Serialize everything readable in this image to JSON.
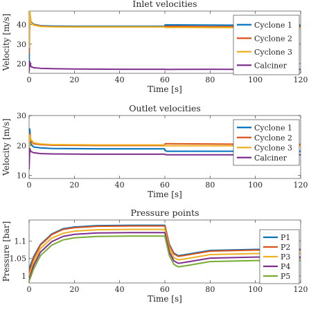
{
  "chart_data": [
    {
      "type": "line",
      "title": "Inlet velocities",
      "xlabel": "Time [s]",
      "ylabel": "Velocity [m/s]",
      "xlim": [
        0,
        120
      ],
      "ylim": [
        15,
        47
      ],
      "xticks": [
        0,
        20,
        40,
        60,
        80,
        100,
        120
      ],
      "yticks": [
        20,
        30,
        40
      ],
      "grid": false,
      "legend_position": "top-right",
      "series": [
        {
          "name": "Cyclone 1",
          "color": "#0072BD",
          "points": [
            [
              0,
              18
            ],
            [
              0.3,
              46
            ],
            [
              0.8,
              41.5
            ],
            [
              2,
              40.2
            ],
            [
              5,
              39.5
            ],
            [
              10,
              39.3
            ],
            [
              20,
              39.2
            ],
            [
              40,
              39.2
            ],
            [
              59.9,
              39.2
            ],
            [
              60.1,
              39.9
            ],
            [
              61,
              39.9
            ],
            [
              80,
              39.8
            ],
            [
              100,
              39.7
            ],
            [
              120,
              39.7
            ]
          ]
        },
        {
          "name": "Cyclone 2",
          "color": "#D95319",
          "points": [
            [
              0,
              25
            ],
            [
              0.3,
              46
            ],
            [
              0.8,
              41.3
            ],
            [
              2,
              40.0
            ],
            [
              5,
              39.3
            ],
            [
              10,
              39.0
            ],
            [
              20,
              38.9
            ],
            [
              40,
              38.9
            ],
            [
              59.9,
              38.9
            ],
            [
              60.1,
              39.2
            ],
            [
              61,
              39.2
            ],
            [
              80,
              39.0
            ],
            [
              100,
              39.0
            ],
            [
              120,
              39.0
            ]
          ]
        },
        {
          "name": "Cyclone 3",
          "color": "#EDB120",
          "points": [
            [
              0,
              28
            ],
            [
              0.3,
              47
            ],
            [
              0.8,
              41.0
            ],
            [
              2,
              39.8
            ],
            [
              5,
              39.1
            ],
            [
              10,
              38.9
            ],
            [
              20,
              38.8
            ],
            [
              40,
              38.8
            ],
            [
              59.9,
              38.8
            ],
            [
              60.1,
              38.6
            ],
            [
              61,
              38.6
            ],
            [
              80,
              38.5
            ],
            [
              100,
              38.5
            ],
            [
              120,
              38.5
            ]
          ]
        },
        {
          "name": "Calciner",
          "color": "#7E2F8E",
          "points": [
            [
              0,
              16
            ],
            [
              0.3,
              21
            ],
            [
              0.8,
              18.5
            ],
            [
              2,
              17.9
            ],
            [
              5,
              17.6
            ],
            [
              10,
              17.4
            ],
            [
              20,
              17.2
            ],
            [
              40,
              17.1
            ],
            [
              60,
              17.1
            ],
            [
              60.2,
              17.0
            ],
            [
              80,
              17.1
            ],
            [
              100,
              17.0
            ],
            [
              120,
              17.0
            ]
          ]
        }
      ]
    },
    {
      "type": "line",
      "title": "Outlet velocities",
      "xlabel": "Time [s]",
      "ylabel": "Velocity [m/s]",
      "xlim": [
        0,
        120
      ],
      "ylim": [
        9,
        30
      ],
      "xticks": [
        0,
        20,
        40,
        60,
        80,
        100,
        120
      ],
      "yticks": [
        10,
        20,
        30
      ],
      "grid": false,
      "legend_position": "top-right",
      "series": [
        {
          "name": "Cyclone 1",
          "color": "#0072BD",
          "points": [
            [
              0,
              13
            ],
            [
              0.3,
              25.5
            ],
            [
              0.8,
              20.5
            ],
            [
              2,
              19.5
            ],
            [
              5,
              19.2
            ],
            [
              10,
              19.0
            ],
            [
              30,
              18.9
            ],
            [
              59.9,
              18.9
            ],
            [
              60.1,
              18.3
            ],
            [
              61,
              18.1
            ],
            [
              80,
              18.1
            ],
            [
              100,
              18.1
            ],
            [
              120,
              18.1
            ]
          ]
        },
        {
          "name": "Cyclone 2",
          "color": "#D95319",
          "points": [
            [
              0,
              14
            ],
            [
              0.3,
              24
            ],
            [
              0.8,
              21.5
            ],
            [
              2,
              20.6
            ],
            [
              5,
              20.3
            ],
            [
              10,
              20.1
            ],
            [
              30,
              20.0
            ],
            [
              59.9,
              20.0
            ],
            [
              60.1,
              20.6
            ],
            [
              61,
              20.6
            ],
            [
              80,
              20.5
            ],
            [
              100,
              20.4
            ],
            [
              120,
              20.4
            ]
          ]
        },
        {
          "name": "Cyclone 3",
          "color": "#EDB120",
          "points": [
            [
              0,
              15
            ],
            [
              0.3,
              23.5
            ],
            [
              0.8,
              22
            ],
            [
              2,
              20.9
            ],
            [
              5,
              20.5
            ],
            [
              10,
              20.3
            ],
            [
              30,
              20.2
            ],
            [
              59.9,
              20.2
            ],
            [
              60.1,
              20.0
            ],
            [
              61,
              19.9
            ],
            [
              80,
              19.9
            ],
            [
              100,
              19.9
            ],
            [
              120,
              19.9
            ]
          ]
        },
        {
          "name": "Calciner",
          "color": "#7E2F8E",
          "points": [
            [
              0,
              12
            ],
            [
              0.3,
              19
            ],
            [
              0.8,
              18
            ],
            [
              2,
              17.6
            ],
            [
              5,
              17.3
            ],
            [
              10,
              17.2
            ],
            [
              30,
              17.1
            ],
            [
              59.9,
              17.1
            ],
            [
              60.1,
              17.0
            ],
            [
              61,
              16.9
            ],
            [
              80,
              16.9
            ],
            [
              100,
              16.9
            ],
            [
              120,
              16.9
            ]
          ]
        }
      ]
    },
    {
      "type": "line",
      "title": "Pressure points",
      "xlabel": "Time [s]",
      "ylabel": "Pressure [bar]",
      "xlim": [
        0,
        120
      ],
      "ylim": [
        0.98,
        1.16
      ],
      "xticks": [
        0,
        20,
        40,
        60,
        80,
        100,
        120
      ],
      "yticks": [
        1,
        1.05,
        1.1
      ],
      "ytick_labels": [
        "1",
        "1.05",
        "1.1"
      ],
      "grid": false,
      "legend_position": "top-right",
      "series": [
        {
          "name": "P1",
          "color": "#0072BD",
          "points": [
            [
              0,
              1.02
            ],
            [
              2,
              1.055
            ],
            [
              5,
              1.09
            ],
            [
              10,
              1.12
            ],
            [
              15,
              1.135
            ],
            [
              20,
              1.14
            ],
            [
              30,
              1.144
            ],
            [
              45,
              1.145
            ],
            [
              60,
              1.145
            ],
            [
              62,
              1.09
            ],
            [
              64,
              1.065
            ],
            [
              66,
              1.058
            ],
            [
              70,
              1.062
            ],
            [
              80,
              1.073
            ],
            [
              100,
              1.076
            ],
            [
              120,
              1.076
            ]
          ]
        },
        {
          "name": "P2",
          "color": "#D95319",
          "points": [
            [
              0,
              1.01
            ],
            [
              2,
              1.05
            ],
            [
              5,
              1.088
            ],
            [
              10,
              1.118
            ],
            [
              15,
              1.133
            ],
            [
              20,
              1.138
            ],
            [
              30,
              1.142
            ],
            [
              45,
              1.143
            ],
            [
              60,
              1.143
            ],
            [
              62,
              1.088
            ],
            [
              64,
              1.063
            ],
            [
              66,
              1.056
            ],
            [
              70,
              1.06
            ],
            [
              80,
              1.071
            ],
            [
              100,
              1.074
            ],
            [
              120,
              1.074
            ]
          ]
        },
        {
          "name": "P3",
          "color": "#EDB120",
          "points": [
            [
              0,
              1.0
            ],
            [
              2,
              1.04
            ],
            [
              5,
              1.078
            ],
            [
              10,
              1.108
            ],
            [
              15,
              1.122
            ],
            [
              20,
              1.128
            ],
            [
              30,
              1.132
            ],
            [
              45,
              1.133
            ],
            [
              60,
              1.133
            ],
            [
              62,
              1.078
            ],
            [
              64,
              1.052
            ],
            [
              66,
              1.046
            ],
            [
              70,
              1.05
            ],
            [
              80,
              1.061
            ],
            [
              100,
              1.064
            ],
            [
              120,
              1.064
            ]
          ]
        },
        {
          "name": "P4",
          "color": "#7E2F8E",
          "points": [
            [
              0,
              0.99
            ],
            [
              2,
              1.03
            ],
            [
              5,
              1.068
            ],
            [
              10,
              1.098
            ],
            [
              15,
              1.113
            ],
            [
              20,
              1.119
            ],
            [
              30,
              1.123
            ],
            [
              45,
              1.124
            ],
            [
              60,
              1.124
            ],
            [
              62,
              1.068
            ],
            [
              64,
              1.043
            ],
            [
              66,
              1.036
            ],
            [
              70,
              1.04
            ],
            [
              80,
              1.051
            ],
            [
              100,
              1.054
            ],
            [
              120,
              1.054
            ]
          ]
        },
        {
          "name": "P5",
          "color": "#77AC30",
          "points": [
            [
              0,
              0.985
            ],
            [
              2,
              1.02
            ],
            [
              5,
              1.058
            ],
            [
              10,
              1.088
            ],
            [
              15,
              1.103
            ],
            [
              20,
              1.109
            ],
            [
              30,
              1.113
            ],
            [
              45,
              1.114
            ],
            [
              60,
              1.114
            ],
            [
              62,
              1.058
            ],
            [
              64,
              1.033
            ],
            [
              66,
              1.026
            ],
            [
              70,
              1.03
            ],
            [
              80,
              1.041
            ],
            [
              100,
              1.044
            ],
            [
              120,
              1.044
            ]
          ]
        }
      ]
    }
  ]
}
